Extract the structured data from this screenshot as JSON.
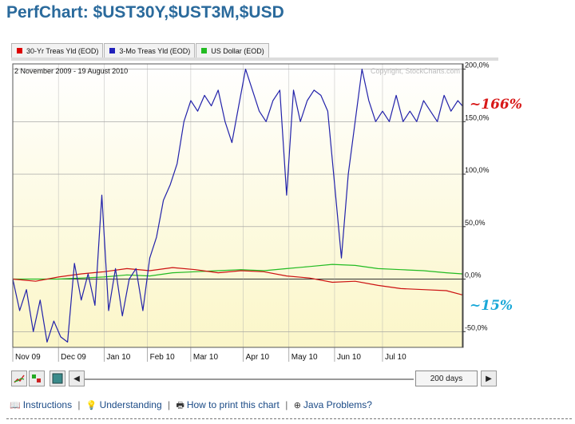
{
  "page_title": "PerfChart: $UST30Y,$UST3M,$USD",
  "legend": [
    {
      "label": "30-Yr Treas Yld (EOD)",
      "color": "#dd0000"
    },
    {
      "label": "3-Mo Treas Yld (EOD)",
      "color": "#2222bb"
    },
    {
      "label": "US Dollar (EOD)",
      "color": "#22bb22"
    }
  ],
  "date_range": "2 November 2009 - 19 August 2010",
  "copyright": "Copyright, StockCharts.com",
  "annotations": {
    "top": "~166%",
    "bottom": "~15%"
  },
  "toolbar": {
    "days_value": "200 days"
  },
  "links": [
    {
      "icon": "book-icon",
      "label": "Instructions"
    },
    {
      "icon": "bulb-icon",
      "label": "Understanding"
    },
    {
      "icon": "printer-icon",
      "label": "How to print this chart"
    },
    {
      "icon": "plus-icon",
      "label": "Java Problems?"
    }
  ],
  "chart_data": {
    "type": "line",
    "x_unit": "trading day index",
    "y_unit": "percent change",
    "ylim": [
      -65,
      205
    ],
    "y_ticks": [
      200,
      150,
      100,
      50,
      0,
      -50
    ],
    "y_tick_labels": [
      "200,0%",
      "150,0%",
      "100,0%",
      "50,0%",
      "0,0%",
      "-50,0%"
    ],
    "x_ticks": [
      {
        "label": "Nov 09",
        "x": 0
      },
      {
        "label": "Dec 09",
        "x": 20
      },
      {
        "label": "Jan 10",
        "x": 40
      },
      {
        "label": "Feb 10",
        "x": 59
      },
      {
        "label": "Mar 10",
        "x": 78
      },
      {
        "label": "Apr 10",
        "x": 101
      },
      {
        "label": "May 10",
        "x": 121
      },
      {
        "label": "Jun 10",
        "x": 141
      },
      {
        "label": "Jul 10",
        "x": 162
      }
    ],
    "grid": true,
    "series": [
      {
        "name": "30-Yr Treas Yld (EOD)",
        "color": "#cc1111",
        "x": [
          0,
          10,
          20,
          30,
          40,
          50,
          60,
          70,
          80,
          90,
          100,
          110,
          120,
          130,
          140,
          150,
          160,
          170,
          180,
          190,
          197
        ],
        "values": [
          0,
          -2,
          2,
          5,
          7,
          10,
          8,
          11,
          9,
          6,
          8,
          7,
          3,
          1,
          -3,
          -2,
          -6,
          -9,
          -10,
          -11,
          -15
        ]
      },
      {
        "name": "3-Mo Treas Yld (EOD)",
        "color": "#2222aa",
        "x": [
          0,
          3,
          6,
          9,
          12,
          15,
          18,
          21,
          24,
          27,
          30,
          33,
          36,
          39,
          42,
          45,
          48,
          51,
          54,
          57,
          60,
          63,
          66,
          69,
          72,
          75,
          78,
          81,
          84,
          87,
          90,
          93,
          96,
          99,
          102,
          105,
          108,
          111,
          114,
          117,
          120,
          123,
          126,
          129,
          132,
          135,
          138,
          141,
          144,
          147,
          150,
          153,
          156,
          159,
          162,
          165,
          168,
          171,
          174,
          177,
          180,
          183,
          186,
          189,
          192,
          195,
          197
        ],
        "values": [
          0,
          -30,
          -10,
          -50,
          -20,
          -60,
          -40,
          -55,
          -60,
          15,
          -20,
          5,
          -25,
          80,
          -30,
          10,
          -35,
          0,
          10,
          -30,
          20,
          40,
          75,
          90,
          110,
          150,
          170,
          160,
          175,
          165,
          180,
          150,
          130,
          165,
          200,
          180,
          160,
          150,
          170,
          180,
          80,
          180,
          150,
          170,
          180,
          175,
          160,
          90,
          20,
          100,
          150,
          200,
          170,
          150,
          160,
          150,
          175,
          150,
          160,
          150,
          170,
          160,
          150,
          175,
          160,
          170,
          165
        ]
      },
      {
        "name": "US Dollar (EOD)",
        "color": "#22bb22",
        "x": [
          0,
          10,
          20,
          30,
          40,
          50,
          60,
          70,
          80,
          90,
          100,
          110,
          120,
          130,
          140,
          150,
          160,
          170,
          180,
          190,
          197
        ],
        "values": [
          0,
          0,
          0,
          1,
          2,
          4,
          3,
          6,
          7,
          8,
          9,
          8,
          10,
          12,
          14,
          13,
          10,
          9,
          8,
          6,
          5
        ]
      }
    ]
  }
}
